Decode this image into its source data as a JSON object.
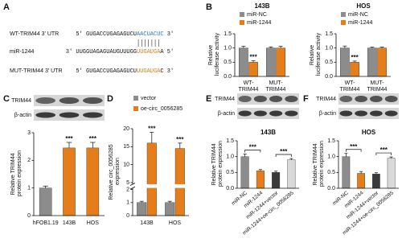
{
  "panels": [
    "A",
    "B",
    "C",
    "D",
    "E",
    "F"
  ],
  "sequences": [
    {
      "label": "WT-TRIM44 3' UTR",
      "prefix": "5' GUGACCUGAGAGUCU",
      "highlight": "AACUACUC",
      "suffix": " 3'",
      "color": "#2e75b6"
    },
    {
      "label": "miR-1244",
      "prefix": "3' UUGGUAGAGUAUGUUUGG",
      "highlight": "UUGAUGA",
      "suffix": "A 5'",
      "color": "#e07b10"
    },
    {
      "label": "MUT-TRIM44 3' UTR",
      "prefix": "5' GUGACCUGAGAGUCU",
      "highlight": "UUGAUGA",
      "suffix": "C 3'",
      "color": "#e07b10"
    }
  ],
  "chart_data": [
    {
      "type": "bar",
      "title": "143B",
      "y_label": "Relative luciferase activity",
      "categories": [
        "WT-TRIM44",
        "MUT-TRIM44"
      ],
      "series": [
        {
          "name": "miR-NC",
          "color": "#8c8c8c",
          "values": [
            1.0,
            1.0
          ],
          "errors": [
            0.06,
            0.04
          ]
        },
        {
          "name": "miR-1244",
          "color": "#e57e1a",
          "values": [
            0.5,
            1.0
          ],
          "errors": [
            0.05,
            0.06
          ]
        }
      ],
      "ylim": [
        0,
        1.5
      ],
      "yticks": [
        {
          "value": 0,
          "label": "0.0"
        },
        {
          "value": 0.5,
          "label": "0.5"
        },
        {
          "value": 1,
          "label": "1.0"
        },
        {
          "value": 1.5,
          "label": "1.5"
        }
      ],
      "annotations": [
        {
          "text": "***",
          "category": "WT-TRIM44",
          "series": "miR-1244"
        }
      ]
    },
    {
      "type": "bar",
      "title": "HOS",
      "y_label": "Relative luciferase activity",
      "categories": [
        "WT-TRIM44",
        "MUT-TRIM44"
      ],
      "series": [
        {
          "name": "miR-NC",
          "color": "#8c8c8c",
          "values": [
            1.0,
            1.0
          ],
          "errors": [
            0.07,
            0.03
          ]
        },
        {
          "name": "miR-1244",
          "color": "#e57e1a",
          "values": [
            0.5,
            1.0
          ],
          "errors": [
            0.04,
            0.03
          ]
        }
      ],
      "ylim": [
        0,
        1.5
      ],
      "yticks": [
        {
          "value": 0,
          "label": "0.0"
        },
        {
          "value": 0.5,
          "label": "0.5"
        },
        {
          "value": 1,
          "label": "1.0"
        },
        {
          "value": 1.5,
          "label": "1.5"
        }
      ],
      "annotations": [
        {
          "text": "***",
          "category": "WT-TRIM44",
          "series": "miR-1244"
        }
      ]
    },
    {
      "type": "bar",
      "y_label": "Relative TRIM44 protein expression",
      "blot_labels": [
        "TRIM44",
        "β-actin"
      ],
      "categories": [
        "hFOB1.19",
        "143B",
        "HOS"
      ],
      "values": [
        1.0,
        2.45,
        2.45
      ],
      "errors": [
        0.07,
        0.2,
        0.2
      ],
      "colors": [
        "#8c8c8c",
        "#e57e1a",
        "#e57e1a"
      ],
      "ylim": [
        0,
        3
      ],
      "yticks": [
        0,
        1,
        2,
        3
      ],
      "annotations": [
        {
          "text": "***",
          "category": "143B"
        },
        {
          "text": "***",
          "category": "HOS"
        }
      ]
    },
    {
      "type": "bar",
      "y_label": "Relative circ_0056285 expression",
      "categories": [
        "143B",
        "HOS"
      ],
      "series": [
        {
          "name": "vector",
          "color": "#8c8c8c",
          "values": [
            1.0,
            1.0
          ],
          "errors": [
            0.1,
            0.1
          ]
        },
        {
          "name": "oe-circ_0056285",
          "color": "#e57e1a",
          "values": [
            16,
            14.5
          ],
          "errors": [
            3,
            1.5
          ]
        }
      ],
      "ylim": [
        0,
        20
      ],
      "ybreak": [
        2,
        5
      ],
      "yticks": [
        0,
        1,
        2,
        5,
        10,
        15,
        20
      ],
      "annotations": [
        {
          "text": "***",
          "category": "143B",
          "series": "oe-circ_0056285"
        },
        {
          "text": "***",
          "category": "HOS",
          "series": "oe-circ_0056285"
        }
      ]
    },
    {
      "type": "bar",
      "title": "143B",
      "y_label": "Relative TRIM44 protein expression",
      "blot_labels": [
        "TRIM44",
        "β-actin"
      ],
      "categories": [
        "miR-NC",
        "miR-1244",
        "miR-1244+vector",
        "miR-1244+oe-circ_0056285"
      ],
      "values": [
        1.0,
        0.55,
        0.5,
        0.9
      ],
      "errors": [
        0.08,
        0.04,
        0.04,
        0.04
      ],
      "colors": [
        "#8c8c8c",
        "#e57e1a",
        "#3a3a3a",
        "#d9d9d9"
      ],
      "ylim": [
        0,
        1.5
      ],
      "yticks": [
        {
          "value": 0,
          "label": "0.0"
        },
        {
          "value": 0.5,
          "label": "0.5"
        },
        {
          "value": 1,
          "label": "1.0"
        },
        {
          "value": 1.5,
          "label": "1.5"
        }
      ],
      "brackets": [
        {
          "text": "***",
          "from": "miR-NC",
          "to": "miR-1244"
        },
        {
          "text": "***",
          "from": "miR-1244+vector",
          "to": "miR-1244+oe-circ_0056285"
        }
      ]
    },
    {
      "type": "bar",
      "title": "HOS",
      "y_label": "Relative TRIM44 protein expression",
      "blot_labels": [
        "TRIM44",
        "β-actin"
      ],
      "categories": [
        "miR-NC",
        "miR-1244",
        "miR-1244+vector",
        "miR-1244+oe-circ_0056285"
      ],
      "values": [
        1.0,
        0.47,
        0.45,
        0.95
      ],
      "errors": [
        0.1,
        0.06,
        0.04,
        0.04
      ],
      "colors": [
        "#8c8c8c",
        "#e57e1a",
        "#3a3a3a",
        "#d9d9d9"
      ],
      "ylim": [
        0,
        1.5
      ],
      "yticks": [
        {
          "value": 0,
          "label": "0.0"
        },
        {
          "value": 0.5,
          "label": "0.5"
        },
        {
          "value": 1,
          "label": "1.0"
        },
        {
          "value": 1.5,
          "label": "1.5"
        }
      ],
      "brackets": [
        {
          "text": "***",
          "from": "miR-NC",
          "to": "miR-1244"
        },
        {
          "text": "***",
          "from": "miR-1244+vector",
          "to": "miR-1244+oe-circ_0056285"
        }
      ]
    }
  ]
}
